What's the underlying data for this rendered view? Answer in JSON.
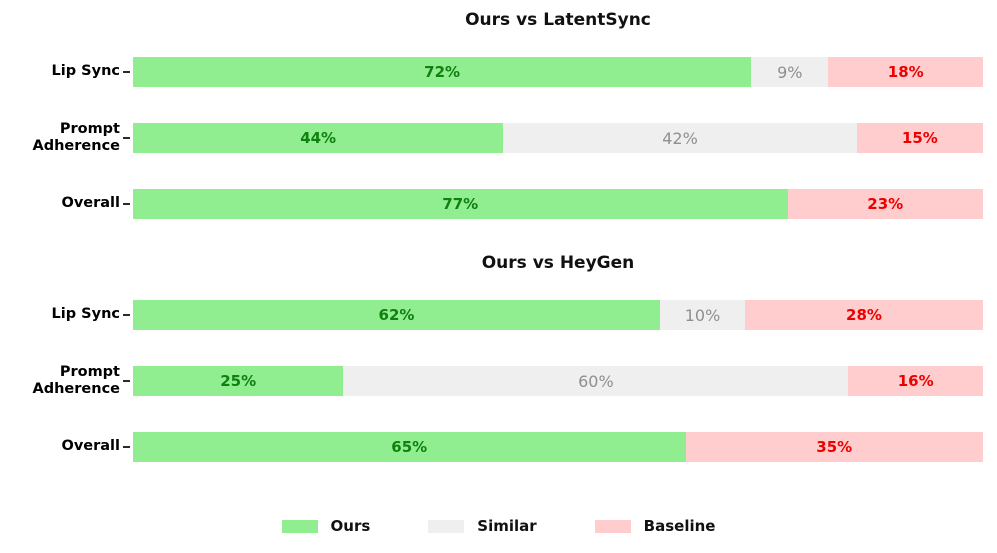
{
  "colors": {
    "background": "#ffffff",
    "ours_bg": "#90ee90",
    "similar_bg": "#efefef",
    "baseline_bg": "#ffcdcd",
    "ours_text": "#108010",
    "similar_text": "#8f8f8f",
    "baseline_text": "#ef0000",
    "title_text": "#111111",
    "category_text": "#000000"
  },
  "charts": [
    {
      "title": "Ours vs LatentSync",
      "rows": [
        {
          "label_lines": [
            "Lip Sync"
          ],
          "ours": {
            "v": 72,
            "t": "72%"
          },
          "similar": {
            "v": 9,
            "t": "9%"
          },
          "baseline": {
            "v": 18,
            "t": "18%"
          }
        },
        {
          "label_lines": [
            "Prompt",
            "Adherence"
          ],
          "ours": {
            "v": 44,
            "t": "44%"
          },
          "similar": {
            "v": 42,
            "t": "42%"
          },
          "baseline": {
            "v": 15,
            "t": "15%"
          }
        },
        {
          "label_lines": [
            "Overall"
          ],
          "ours": {
            "v": 77,
            "t": "77%"
          },
          "similar": {
            "v": 0,
            "t": ""
          },
          "baseline": {
            "v": 23,
            "t": "23%"
          }
        }
      ]
    },
    {
      "title": "Ours vs HeyGen",
      "rows": [
        {
          "label_lines": [
            "Lip Sync"
          ],
          "ours": {
            "v": 62,
            "t": "62%"
          },
          "similar": {
            "v": 10,
            "t": "10%"
          },
          "baseline": {
            "v": 28,
            "t": "28%"
          }
        },
        {
          "label_lines": [
            "Prompt",
            "Adherence"
          ],
          "ours": {
            "v": 25,
            "t": "25%"
          },
          "similar": {
            "v": 60,
            "t": "60%"
          },
          "baseline": {
            "v": 16,
            "t": "16%"
          }
        },
        {
          "label_lines": [
            "Overall"
          ],
          "ours": {
            "v": 65,
            "t": "65%"
          },
          "similar": {
            "v": 0,
            "t": ""
          },
          "baseline": {
            "v": 35,
            "t": "35%"
          }
        }
      ]
    }
  ],
  "legend": {
    "items": [
      {
        "label": "Ours",
        "color": "#90ee90"
      },
      {
        "label": "Similar",
        "color": "#efefef"
      },
      {
        "label": "Baseline",
        "color": "#ffcdcd"
      }
    ]
  },
  "chart_data": [
    {
      "type": "bar",
      "orientation": "horizontal",
      "stacked": true,
      "title": "Ours vs LatentSync",
      "categories": [
        "Lip Sync",
        "Prompt Adherence",
        "Overall"
      ],
      "series": [
        {
          "name": "Ours",
          "values": [
            72,
            44,
            77
          ],
          "color": "#90ee90"
        },
        {
          "name": "Similar",
          "values": [
            9,
            42,
            0
          ],
          "color": "#efefef"
        },
        {
          "name": "Baseline",
          "values": [
            18,
            15,
            23
          ],
          "color": "#ffcdcd"
        }
      ],
      "value_suffix": "%",
      "grid": false,
      "legend_position": "bottom",
      "layout_hint": "each row's segments are normalized to the row's total width"
    },
    {
      "type": "bar",
      "orientation": "horizontal",
      "stacked": true,
      "title": "Ours vs HeyGen",
      "categories": [
        "Lip Sync",
        "Prompt Adherence",
        "Overall"
      ],
      "series": [
        {
          "name": "Ours",
          "values": [
            62,
            25,
            65
          ],
          "color": "#90ee90"
        },
        {
          "name": "Similar",
          "values": [
            10,
            60,
            0
          ],
          "color": "#efefef"
        },
        {
          "name": "Baseline",
          "values": [
            28,
            16,
            35
          ],
          "color": "#ffcdcd"
        }
      ],
      "value_suffix": "%",
      "grid": false,
      "legend_position": "bottom",
      "layout_hint": "each row's segments are normalized to the row's total width"
    }
  ]
}
